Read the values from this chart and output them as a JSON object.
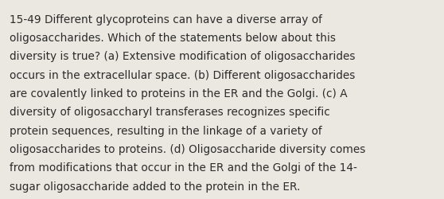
{
  "background_color": "#eae8e0",
  "text_color": "#2b2b2b",
  "font_size": 9.8,
  "font_family": "DejaVu Sans",
  "text": "15-49 Different glycoproteins can have a diverse array of\noligosaccharides. Which of the statements below about this\ndiversity is true? (a) Extensive modification of oligosaccharides\noccurs in the extracellular space. (b) Different oligosaccharides\nare covalently linked to proteins in the ER and the Golgi. (c) A\ndiversity of oligosaccharyl transferases recognizes specific\nprotein sequences, resulting in the linkage of a variety of\noligosaccharides to proteins. (d) Oligosaccharide diversity comes\nfrom modifications that occur in the ER and the Golgi of the 14-\nsugar oligosaccharide added to the protein in the ER."
}
